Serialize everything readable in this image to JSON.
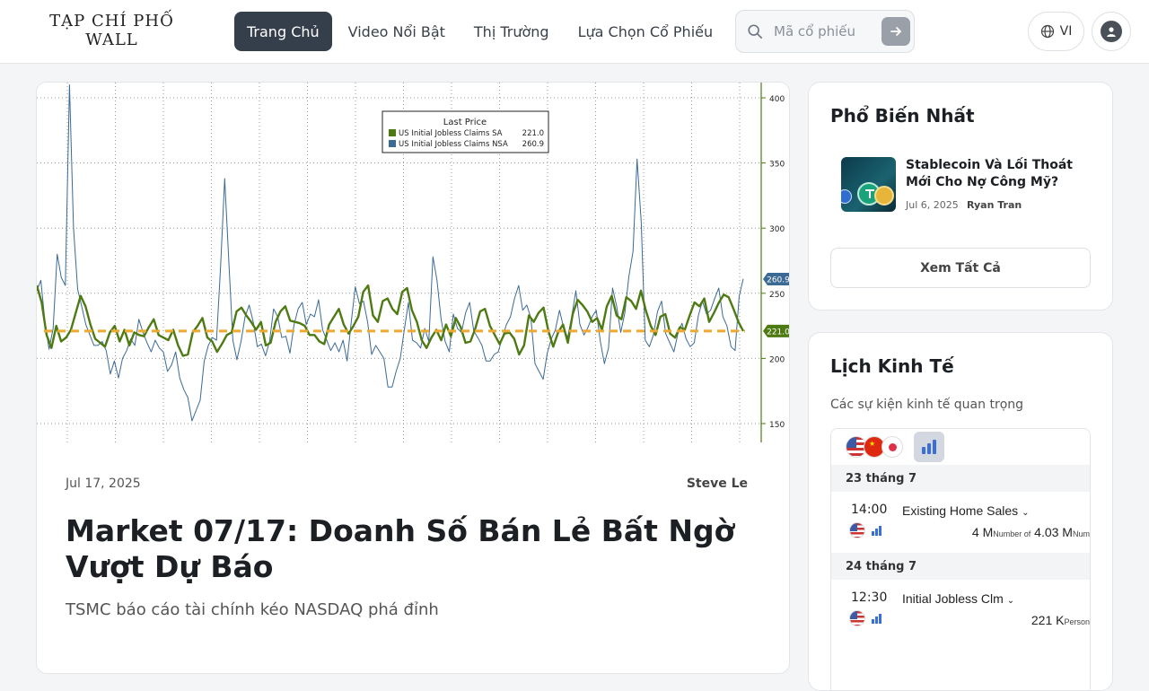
{
  "header": {
    "logo": "TẠP CHÍ PHỐ WALL",
    "nav": [
      {
        "label": "Trang Chủ",
        "active": true
      },
      {
        "label": "Video Nổi Bật",
        "active": false
      },
      {
        "label": "Thị Trường",
        "active": false
      },
      {
        "label": "Lựa Chọn Cổ Phiếu",
        "active": false
      }
    ],
    "search_placeholder": "Mã cổ phiếu",
    "language": "VI",
    "icons": {
      "search": "search-icon",
      "submit": "arrow-right-icon",
      "language": "globe-icon",
      "user": "user-icon"
    }
  },
  "article": {
    "date": "Jul 17, 2025",
    "author": "Steve Le",
    "title": "Market 07/17: Doanh Số Bán Lẻ Bất Ngờ Vượt Dự Báo",
    "subtitle": "TSMC báo cáo tài chính kéo NASDAQ phá đỉnh"
  },
  "chart_data": {
    "type": "line",
    "legend_title": "Last Price",
    "legend_placement": "top-center",
    "series": [
      {
        "name": "US Initial Jobless Claims SA",
        "last": "221.0",
        "color": "#4e7a12",
        "values": [
          256,
          243,
          218,
          208,
          225,
          213,
          216,
          222,
          235,
          248,
          240,
          226,
          215,
          212,
          209,
          220,
          225,
          213,
          222,
          210,
          220,
          218,
          217,
          224,
          230,
          218,
          216,
          214,
          222,
          210,
          202,
          203,
          220,
          225,
          231,
          216,
          213,
          205,
          211,
          218,
          220,
          236,
          239,
          233,
          228,
          222,
          228,
          210,
          212,
          228,
          236,
          240,
          229,
          228,
          227,
          225,
          218,
          218,
          213,
          211,
          226,
          232,
          238,
          226,
          219,
          225,
          232,
          251,
          256,
          233,
          228,
          244,
          246,
          238,
          234,
          251,
          254,
          237,
          228,
          214,
          208,
          216,
          222,
          214,
          226,
          217,
          231,
          224,
          212,
          213,
          223,
          236,
          238,
          225,
          218,
          211,
          219,
          220,
          215,
          203,
          210,
          233,
          228,
          235,
          239,
          221,
          209,
          220,
          226,
          212,
          234,
          245,
          241,
          236,
          228,
          231,
          222,
          240,
          248,
          233,
          230,
          247,
          244,
          238,
          252,
          237,
          225,
          218,
          232,
          234,
          219,
          216,
          224,
          222,
          233,
          243,
          240,
          246,
          228,
          235,
          243,
          249,
          247,
          238,
          228,
          221
        ]
      },
      {
        "name": "US Initial Jobless Claims NSA",
        "last": "260.9",
        "color": "#3b6a95",
        "values": [
          252,
          260,
          228,
          207,
          223,
          280,
          262,
          256,
          410,
          300,
          253,
          240,
          226,
          218,
          210,
          210,
          213,
          206,
          188,
          198,
          185,
          200,
          206,
          215,
          210,
          230,
          220,
          212,
          205,
          214,
          208,
          205,
          190,
          195,
          205,
          185,
          176,
          170,
          152,
          160,
          168,
          198,
          210,
          216,
          214,
          270,
          338,
          276,
          214,
          199,
          213,
          232,
          241,
          228,
          209,
          211,
          202,
          213,
          238,
          232,
          216,
          217,
          204,
          226,
          238,
          243,
          226,
          234,
          232,
          245,
          222,
          214,
          206,
          212,
          205,
          214,
          198,
          228,
          255,
          242,
          244,
          228,
          203,
          210,
          205,
          200,
          178,
          178,
          190,
          200,
          222,
          243,
          214,
          212,
          208,
          223,
          213,
          278,
          260,
          230,
          213,
          205,
          234,
          223,
          220,
          235,
          243,
          221,
          216,
          210,
          198,
          198,
          203,
          205,
          216,
          226,
          232,
          246,
          256,
          237,
          241,
          231,
          196,
          190,
          184,
          204,
          215,
          222,
          237,
          224,
          216,
          232,
          252,
          226,
          218,
          224,
          232,
          237,
          213,
          196,
          208,
          254,
          240,
          220,
          235,
          263,
          282,
          353,
          305,
          214,
          209,
          218,
          236,
          244,
          219,
          212,
          205,
          219,
          227,
          215,
          209,
          212,
          233,
          244,
          234,
          237,
          246,
          254,
          232,
          225,
          209,
          206,
          248,
          261
        ]
      }
    ],
    "reference_line": 221,
    "ylim": [
      140,
      410
    ],
    "yticks": [
      150,
      200,
      250,
      300,
      350,
      400
    ],
    "value_labels": [
      "260.9",
      "221.0"
    ],
    "grid": true
  },
  "sidebar": {
    "popular": {
      "title": "Phổ Biến Nhất",
      "items": [
        {
          "title": "Stablecoin Và Lối Thoát Mới Cho Nợ Công Mỹ?",
          "date": "Jul 6, 2025",
          "author": "Ryan Tran"
        }
      ],
      "see_all": "Xem Tất Cả"
    },
    "calendar": {
      "title": "Lịch Kinh Tế",
      "subtitle": "Các sự kiện kinh tế quan trọng",
      "flags": [
        "us-flag-icon",
        "china-flag-icon",
        "japan-flag-icon"
      ],
      "days": [
        {
          "date": "23 tháng 7",
          "events": [
            {
              "time": "14:00",
              "name": "Existing Home Sales",
              "actual": "4 M",
              "actual_unit": "Number of",
              "forecast": "4.03 M",
              "forecast_unit": "Num"
            }
          ]
        },
        {
          "date": "24 tháng 7",
          "events": [
            {
              "time": "12:30",
              "name": "Initial Jobless Clm",
              "actual": "221 K",
              "actual_unit": "Person"
            }
          ]
        }
      ]
    }
  },
  "colors": {
    "nav_active": "#353f4c",
    "accent_blue": "#3a6fd8",
    "sa_line": "#4e7a12",
    "nsa_line": "#3b6a95",
    "reference": "#f0a830"
  }
}
